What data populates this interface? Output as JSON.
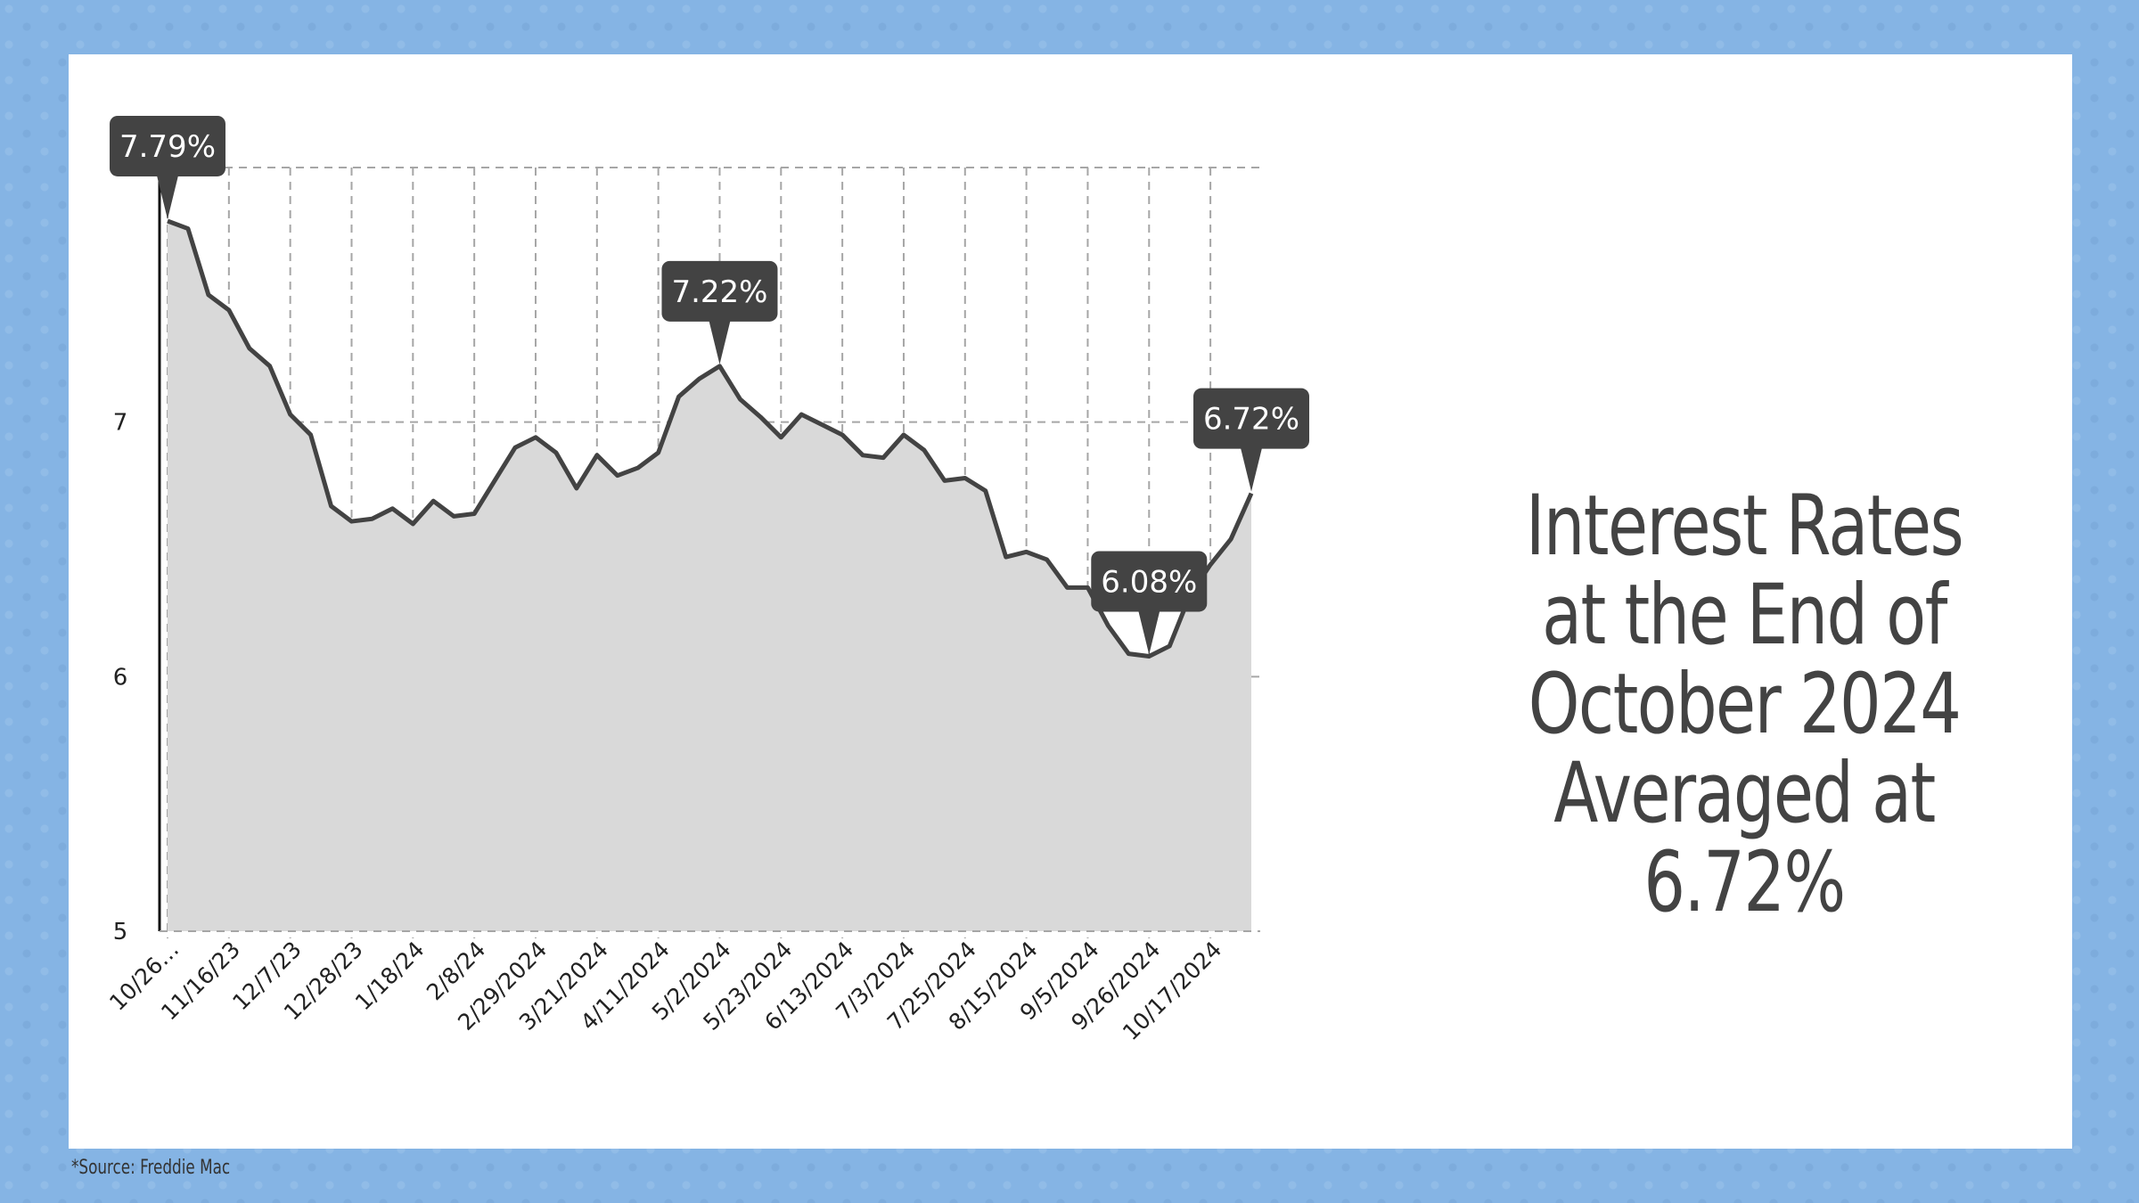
{
  "headline": {
    "lines": [
      "Interest Rates",
      "at the End of",
      "October 2024",
      "Averaged at 6.72%"
    ]
  },
  "source": "*Source: Freddie Mac",
  "colors": {
    "border_bg": "#85b4e4",
    "card_bg": "#ffffff",
    "line": "#434343",
    "area": "#d9d9d9",
    "grid": "#a6a6a6",
    "callout_bg": "#434343",
    "callout_text": "#ffffff"
  },
  "chart_data": {
    "type": "area",
    "ylim": [
      5,
      8
    ],
    "yticks": [
      5,
      6,
      7,
      8
    ],
    "grid": true,
    "xtick_labels": [
      "10/26…",
      "11/16/23",
      "12/7/23",
      "12/28/23",
      "1/18/24",
      "2/8/24",
      "2/29/2024",
      "3/21/2024",
      "4/11/2024",
      "5/2/2024",
      "5/23/2024",
      "6/13/2024",
      "7/3/2024",
      "7/25/2024",
      "8/15/2024",
      "9/5/2024",
      "9/26/2024",
      "10/17/2024"
    ],
    "values": [
      7.79,
      7.76,
      7.5,
      7.44,
      7.29,
      7.22,
      7.03,
      6.95,
      6.67,
      6.61,
      6.62,
      6.66,
      6.6,
      6.69,
      6.63,
      6.64,
      6.77,
      6.9,
      6.94,
      6.88,
      6.74,
      6.87,
      6.79,
      6.82,
      6.88,
      7.1,
      7.17,
      7.22,
      7.09,
      7.02,
      6.94,
      7.03,
      6.99,
      6.95,
      6.87,
      6.86,
      6.95,
      6.89,
      6.77,
      6.78,
      6.73,
      6.47,
      6.49,
      6.46,
      6.35,
      6.35,
      6.2,
      6.09,
      6.08,
      6.12,
      6.32,
      6.44,
      6.54,
      6.72
    ],
    "callouts": [
      {
        "index": 0,
        "label": "7.79%"
      },
      {
        "index": 27,
        "label": "7.22%"
      },
      {
        "index": 48,
        "label": "6.08%"
      },
      {
        "index": 53,
        "label": "6.72%"
      }
    ]
  }
}
